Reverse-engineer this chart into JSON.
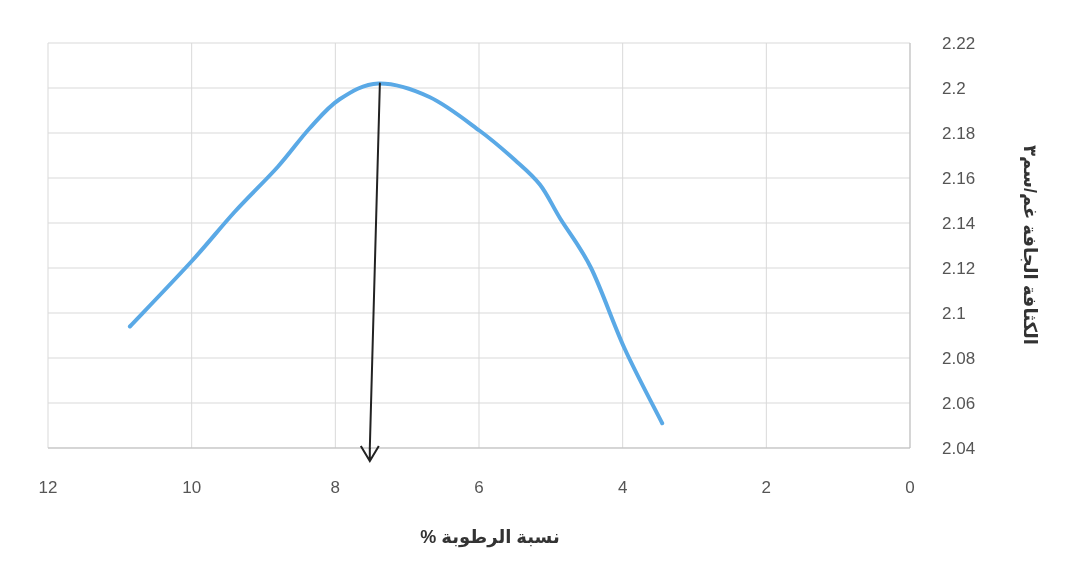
{
  "chart_data": {
    "type": "line",
    "xlabel": "نسبة الرطوبة %",
    "ylabel": "الكثافة الجافة غم/سم٣",
    "x": [
      10.86,
      10.0,
      9.4,
      8.8,
      8.36,
      7.94,
      7.4,
      6.69,
      5.99,
      5.5,
      5.15,
      4.87,
      4.44,
      3.97,
      3.45
    ],
    "series": [
      {
        "color": "#5aa9e6",
        "values": [
          2.094,
          2.123,
          2.145,
          2.165,
          2.182,
          2.195,
          2.202,
          2.196,
          2.181,
          2.168,
          2.157,
          2.142,
          2.12,
          2.084,
          2.051
        ]
      },
      {
        "type": "line",
        "color": "#222222",
        "x": [
          7.38,
          7.52
        ],
        "values": [
          2.202,
          2.04
        ]
      }
    ],
    "xlim": [
      12,
      0
    ],
    "xticks": [
      12,
      10,
      8,
      6,
      4,
      2,
      0
    ],
    "ylim": [
      2.04,
      2.22
    ],
    "yticks": [
      2.04,
      2.06,
      2.08,
      2.1,
      2.12,
      2.14,
      2.16,
      2.18,
      2.2,
      2.22
    ],
    "grid": true,
    "marker": "none",
    "line_style": "solid"
  }
}
